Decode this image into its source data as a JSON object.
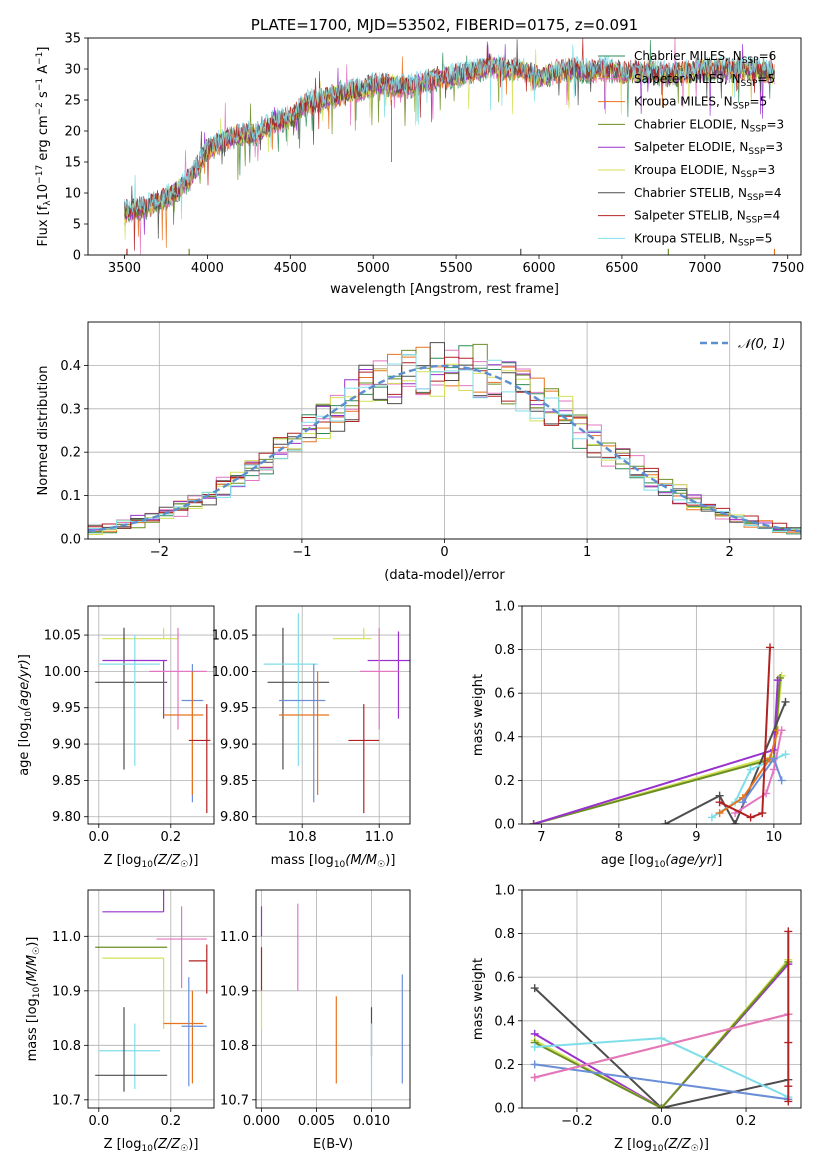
{
  "colors": {
    "chab_miles": "#2e8b57",
    "salp_miles": "#e377c2",
    "krou_miles": "#e8731e",
    "chab_elodie": "#6b8e23",
    "salp_elodie": "#9932cc",
    "krou_elodie": "#d4e157",
    "chab_stelib": "#4d4d4d",
    "salp_stelib": "#b22222",
    "krou_stelib": "#80deea",
    "extra_blue": "#6a8fd8",
    "normal": "#5b8fd0",
    "grid": "#b0b0b0"
  },
  "chart_data": [
    {
      "id": "spectrum",
      "type": "line",
      "title": "PLATE=1700, MJD=53502, FIBERID=0175, z=0.091",
      "xlabel": "wavelength [Angstrom, rest frame]",
      "ylabel": "Flux [f_λ10^-17 erg cm^-2 s^-1 A^-1]",
      "xlim": [
        3280,
        7580
      ],
      "ylim": [
        0,
        35
      ],
      "xticks": [
        3500,
        4000,
        4500,
        5000,
        5500,
        6000,
        6500,
        7000,
        7500
      ],
      "yticks": [
        0,
        5,
        10,
        15,
        20,
        25,
        30,
        35
      ],
      "grid": false,
      "legend_position": "top-right",
      "continuum": {
        "x": [
          3500,
          3600,
          3700,
          3800,
          3900,
          4000,
          4100,
          4200,
          4300,
          4400,
          4500,
          4600,
          4700,
          4800,
          4900,
          5000,
          5100,
          5200,
          5300,
          5400,
          5500,
          5600,
          5700,
          5800,
          5900,
          6000,
          6100,
          6200,
          6300,
          6400,
          6500,
          6600,
          6700,
          6800,
          6900,
          7000,
          7100,
          7200,
          7300,
          7400
        ],
        "y": [
          7,
          7.5,
          8.5,
          10,
          12.5,
          17,
          18.5,
          19.5,
          19.5,
          21.5,
          22,
          24.5,
          25,
          26,
          26.5,
          27.5,
          27.5,
          27,
          28,
          28.5,
          29,
          29.5,
          30.5,
          30,
          30,
          28.5,
          29.5,
          30,
          29.5,
          30,
          29.5,
          29.5,
          29.5,
          29,
          29.5,
          30,
          30,
          30,
          30,
          29.5
        ]
      },
      "series": [
        {
          "name": "Chabrier MILES, N_SSP=6",
          "label_main": "Chabrier MILES, N",
          "label_sub": "SSP",
          "label_tail": "=6",
          "color_key": "chab_miles"
        },
        {
          "name": "Salpeter MILES, N_SSP=5",
          "label_main": "Salpeter MILES, N",
          "label_sub": "SSP",
          "label_tail": "=5",
          "color_key": "salp_miles"
        },
        {
          "name": "Kroupa MILES, N_SSP=5",
          "label_main": "Kroupa MILES, N",
          "label_sub": "SSP",
          "label_tail": "=5",
          "color_key": "krou_miles"
        },
        {
          "name": "Chabrier ELODIE, N_SSP=3",
          "label_main": "Chabrier ELODIE, N",
          "label_sub": "SSP",
          "label_tail": "=3",
          "color_key": "chab_elodie"
        },
        {
          "name": "Salpeter ELODIE, N_SSP=3",
          "label_main": "Salpeter ELODIE, N",
          "label_sub": "SSP",
          "label_tail": "=3",
          "color_key": "salp_elodie"
        },
        {
          "name": "Kroupa ELODIE, N_SSP=3",
          "label_main": "Kroupa ELODIE, N",
          "label_sub": "SSP",
          "label_tail": "=3",
          "color_key": "krou_elodie"
        },
        {
          "name": "Chabrier STELIB, N_SSP=4",
          "label_main": "Chabrier STELIB, N",
          "label_sub": "SSP",
          "label_tail": "=4",
          "color_key": "chab_stelib"
        },
        {
          "name": "Salpeter STELIB, N_SSP=4",
          "label_main": "Salpeter STELIB, N",
          "label_sub": "SSP",
          "label_tail": "=4",
          "color_key": "salp_stelib"
        },
        {
          "name": "Kroupa STELIB, N_SSP=5",
          "label_main": "Kroupa STELIB, N",
          "label_sub": "SSP",
          "label_tail": "=5",
          "color_key": "krou_stelib"
        }
      ]
    },
    {
      "id": "residuals",
      "type": "histogram",
      "xlabel": "(data-model)/error",
      "ylabel": "Normed distribution",
      "xlim": [
        -2.5,
        2.5
      ],
      "ylim": [
        0,
        0.5
      ],
      "xticks": [
        -2,
        -1,
        0,
        1,
        2
      ],
      "yticks": [
        0.0,
        0.1,
        0.2,
        0.3,
        0.4
      ],
      "grid": true,
      "legend": "𝒩(0, 1)",
      "legend_position": "top-right",
      "bin_width": 0.1
    },
    {
      "id": "age_vs_Z",
      "type": "errorbar",
      "xlabel": "Z [log10(Z/Z☉)]",
      "ylabel": "age [log10(age/yr)]",
      "xlim": [
        -0.03,
        0.32
      ],
      "ylim": [
        9.79,
        10.09
      ],
      "xticks": [
        0.0,
        0.2
      ],
      "yticks": [
        9.8,
        9.85,
        9.9,
        9.95,
        10.0,
        10.05
      ],
      "grid": true,
      "points": [
        {
          "color_key": "chab_miles",
          "x": 0.01,
          "xerr": [
            0.0,
            0.0
          ],
          "y": 10.045,
          "yerr": [
            0.0,
            0.0
          ]
        },
        {
          "color_key": "krou_elodie",
          "x": 0.18,
          "xerr": [
            0.17,
            0.04
          ],
          "y": 10.045,
          "yerr": [
            0.0,
            0.015
          ]
        },
        {
          "color_key": "chab_stelib",
          "x": 0.07,
          "xerr": [
            0.08,
            0.12
          ],
          "y": 9.985,
          "yerr": [
            0.12,
            0.075
          ]
        },
        {
          "color_key": "krou_stelib",
          "x": 0.1,
          "xerr": [
            0.1,
            0.07
          ],
          "y": 10.01,
          "yerr": [
            0.14,
            0.04
          ]
        },
        {
          "color_key": "salp_elodie",
          "x": 0.18,
          "xerr": [
            0.17,
            0.01
          ],
          "y": 10.015,
          "yerr": [
            0.08,
            0.0
          ]
        },
        {
          "color_key": "salp_miles",
          "x": 0.22,
          "xerr": [
            0.08,
            0.08
          ],
          "y": 10.0,
          "yerr": [
            0.08,
            0.06
          ]
        },
        {
          "color_key": "extra_blue",
          "x": 0.26,
          "xerr": [
            0.03,
            0.03
          ],
          "y": 9.96,
          "yerr": [
            0.14,
            0.05
          ]
        },
        {
          "color_key": "krou_miles",
          "x": 0.26,
          "xerr": [
            0.08,
            0.03
          ],
          "y": 9.94,
          "yerr": [
            0.11,
            0.06
          ]
        },
        {
          "color_key": "salp_stelib",
          "x": 0.3,
          "xerr": [
            0.05,
            0.01
          ],
          "y": 9.905,
          "yerr": [
            0.1,
            0.05
          ]
        }
      ]
    },
    {
      "id": "age_vs_mass",
      "type": "errorbar",
      "xlabel": "mass [log10(M/M☉)]",
      "ylabel": "",
      "xlim": [
        10.68,
        11.08
      ],
      "ylim": [
        9.79,
        10.09
      ],
      "xticks": [
        10.8,
        11.0
      ],
      "yticks": [
        9.8,
        9.85,
        9.9,
        9.95,
        10.0,
        10.05
      ],
      "grid": true,
      "points": [
        {
          "color_key": "krou_elodie",
          "x": 10.96,
          "xerr": [
            0.08,
            0.02
          ],
          "y": 10.045,
          "yerr": [
            0.0,
            0.015
          ]
        },
        {
          "color_key": "chab_stelib",
          "x": 10.75,
          "xerr": [
            0.04,
            0.12
          ],
          "y": 9.985,
          "yerr": [
            0.12,
            0.075
          ]
        },
        {
          "color_key": "krou_stelib",
          "x": 10.79,
          "xerr": [
            0.09,
            0.05
          ],
          "y": 10.01,
          "yerr": [
            0.14,
            0.07
          ]
        },
        {
          "color_key": "salp_elodie",
          "x": 11.05,
          "xerr": [
            0.08,
            0.03
          ],
          "y": 10.015,
          "yerr": [
            0.08,
            0.04
          ]
        },
        {
          "color_key": "salp_miles",
          "x": 11.0,
          "xerr": [
            0.05,
            0.05
          ],
          "y": 10.0,
          "yerr": [
            0.08,
            0.06
          ]
        },
        {
          "color_key": "extra_blue",
          "x": 10.83,
          "xerr": [
            0.09,
            0.03
          ],
          "y": 9.96,
          "yerr": [
            0.14,
            0.05
          ]
        },
        {
          "color_key": "krou_miles",
          "x": 10.84,
          "xerr": [
            0.1,
            0.03
          ],
          "y": 9.94,
          "yerr": [
            0.11,
            0.06
          ]
        },
        {
          "color_key": "salp_stelib",
          "x": 10.96,
          "xerr": [
            0.04,
            0.04
          ],
          "y": 9.905,
          "yerr": [
            0.1,
            0.05
          ]
        }
      ]
    },
    {
      "id": "weight_vs_age",
      "type": "line",
      "xlabel": "age [log10(age/yr)]",
      "ylabel": "mass weight",
      "xlim": [
        6.75,
        10.35
      ],
      "ylim": [
        0,
        1.0
      ],
      "xticks": [
        7,
        8,
        9,
        10
      ],
      "yticks": [
        0.0,
        0.2,
        0.4,
        0.6,
        0.8,
        1.0
      ],
      "grid": true,
      "series": [
        {
          "color_key": "krou_elodie",
          "x": [
            6.9,
            10.0,
            10.1
          ],
          "y": [
            0.0,
            0.31,
            0.68
          ]
        },
        {
          "color_key": "chab_elodie",
          "x": [
            6.9,
            10.0,
            10.08
          ],
          "y": [
            0.0,
            0.3,
            0.67
          ]
        },
        {
          "color_key": "salp_elodie",
          "x": [
            6.9,
            10.0,
            10.05
          ],
          "y": [
            0.0,
            0.34,
            0.66
          ]
        },
        {
          "color_key": "chab_stelib",
          "x": [
            8.6,
            9.3,
            9.5,
            10.15
          ],
          "y": [
            0.0,
            0.13,
            0.0,
            0.56
          ]
        },
        {
          "color_key": "krou_stelib",
          "x": [
            9.2,
            9.5,
            9.7,
            10.15
          ],
          "y": [
            0.03,
            0.1,
            0.25,
            0.32
          ]
        },
        {
          "color_key": "krou_miles",
          "x": [
            9.3,
            9.6,
            9.95,
            10.05
          ],
          "y": [
            0.05,
            0.12,
            0.3,
            0.43
          ]
        },
        {
          "color_key": "salp_miles",
          "x": [
            9.5,
            9.9,
            10.0,
            10.1
          ],
          "y": [
            0.05,
            0.14,
            0.25,
            0.43
          ]
        },
        {
          "color_key": "extra_blue",
          "x": [
            9.6,
            10.0,
            10.1
          ],
          "y": [
            0.1,
            0.3,
            0.2
          ]
        },
        {
          "color_key": "salp_stelib",
          "x": [
            9.3,
            9.7,
            9.85,
            9.95
          ],
          "y": [
            0.1,
            0.03,
            0.05,
            0.81
          ]
        }
      ]
    },
    {
      "id": "mass_vs_Z",
      "type": "errorbar",
      "xlabel": "Z [log10(Z/Z☉)]",
      "ylabel": "mass [log10(M/M☉)]",
      "xlim": [
        -0.03,
        0.32
      ],
      "ylim": [
        10.685,
        11.085
      ],
      "xticks": [
        0.0,
        0.2
      ],
      "yticks": [
        10.7,
        10.8,
        10.9,
        11.0
      ],
      "grid": true,
      "points": [
        {
          "color_key": "salp_elodie",
          "x": 0.18,
          "xerr": [
            0.17,
            0.0
          ],
          "y": 11.045,
          "yerr": [
            0.0,
            0.11
          ]
        },
        {
          "color_key": "salp_miles",
          "x": 0.23,
          "xerr": [
            0.07,
            0.07
          ],
          "y": 10.995,
          "yerr": [
            0.09,
            0.06
          ]
        },
        {
          "color_key": "chab_elodie",
          "x": 0.19,
          "xerr": [
            0.2,
            0.0
          ],
          "y": 10.98,
          "yerr": [
            0.0,
            0.0
          ]
        },
        {
          "color_key": "krou_elodie",
          "x": 0.18,
          "xerr": [
            0.17,
            0.0
          ],
          "y": 10.96,
          "yerr": [
            0.13,
            0.0
          ]
        },
        {
          "color_key": "salp_stelib",
          "x": 0.3,
          "xerr": [
            0.05,
            0.0
          ],
          "y": 10.955,
          "yerr": [
            0.06,
            0.03
          ]
        },
        {
          "color_key": "krou_miles",
          "x": 0.26,
          "xerr": [
            0.08,
            0.03
          ],
          "y": 10.84,
          "yerr": [
            0.11,
            0.06
          ]
        },
        {
          "color_key": "extra_blue",
          "x": 0.25,
          "xerr": [
            0.02,
            0.05
          ],
          "y": 10.835,
          "yerr": [
            0.11,
            0.09
          ]
        },
        {
          "color_key": "krou_stelib",
          "x": 0.1,
          "xerr": [
            0.1,
            0.07
          ],
          "y": 10.79,
          "yerr": [
            0.07,
            0.05
          ]
        },
        {
          "color_key": "chab_stelib",
          "x": 0.07,
          "xerr": [
            0.08,
            0.12
          ],
          "y": 10.745,
          "yerr": [
            0.03,
            0.125
          ]
        }
      ]
    },
    {
      "id": "mass_vs_ebv",
      "type": "errorbar",
      "xlabel": "E(B-V)",
      "ylabel": "",
      "xlim": [
        -0.0005,
        0.0135
      ],
      "ylim": [
        10.685,
        11.085
      ],
      "xticks": [
        0.0,
        0.005,
        0.01
      ],
      "yticks": [
        10.7,
        10.8,
        10.9,
        11.0
      ],
      "grid": true,
      "points": [
        {
          "color_key": "salp_elodie",
          "x": 0.0,
          "y": 11.0,
          "yerr": [
            0.0,
            0.055
          ]
        },
        {
          "color_key": "salp_stelib",
          "x": 0.0,
          "y": 10.95,
          "yerr": [
            0.05,
            0.03
          ]
        },
        {
          "color_key": "krou_elodie",
          "x": 0.0,
          "y": 10.86,
          "yerr": [
            0.03,
            0.04
          ]
        },
        {
          "color_key": "salp_miles",
          "x": 0.0033,
          "y": 10.99,
          "yerr": [
            0.09,
            0.07
          ]
        },
        {
          "color_key": "krou_miles",
          "x": 0.0068,
          "y": 10.81,
          "yerr": [
            0.08,
            0.08
          ]
        },
        {
          "color_key": "chab_stelib",
          "x": 0.01,
          "y": 10.83,
          "yerr": [
            0.05,
            0.04
          ]
        },
        {
          "color_key": "krou_stelib",
          "x": 0.01,
          "y": 10.77,
          "yerr": [
            0.06,
            0.07
          ]
        },
        {
          "color_key": "extra_blue",
          "x": 0.0128,
          "y": 10.83,
          "yerr": [
            0.1,
            0.1
          ]
        }
      ]
    },
    {
      "id": "weight_vs_Z",
      "type": "line",
      "xlabel": "Z [log10(Z/Z☉)]",
      "ylabel": "mass weight",
      "xlim": [
        -0.33,
        0.33
      ],
      "ylim": [
        0,
        1.0
      ],
      "xticks": [
        -0.2,
        0.0,
        0.2
      ],
      "yticks": [
        0.0,
        0.2,
        0.4,
        0.6,
        0.8,
        1.0
      ],
      "grid": true,
      "series": [
        {
          "color_key": "chab_stelib",
          "x": [
            -0.3,
            0.0,
            0.3
          ],
          "y": [
            0.55,
            0.0,
            0.13
          ]
        },
        {
          "color_key": "salp_elodie",
          "x": [
            -0.3,
            0.0,
            0.3
          ],
          "y": [
            0.34,
            0.0,
            0.66
          ]
        },
        {
          "color_key": "krou_elodie",
          "x": [
            -0.3,
            0.0,
            0.3
          ],
          "y": [
            0.31,
            0.0,
            0.68
          ]
        },
        {
          "color_key": "chab_elodie",
          "x": [
            -0.3,
            0.0,
            0.3
          ],
          "y": [
            0.3,
            0.0,
            0.67
          ]
        },
        {
          "color_key": "krou_stelib",
          "x": [
            -0.3,
            0.0,
            0.3
          ],
          "y": [
            0.28,
            0.32,
            0.05
          ]
        },
        {
          "color_key": "extra_blue",
          "x": [
            -0.3,
            0.3
          ],
          "y": [
            0.2,
            0.04
          ]
        },
        {
          "color_key": "krou_miles",
          "x": [
            -0.3,
            0.3
          ],
          "y": [
            0.14,
            0.43
          ]
        },
        {
          "color_key": "salp_miles",
          "x": [
            -0.3,
            0.3
          ],
          "y": [
            0.14,
            0.43
          ]
        },
        {
          "color_key": "salp_stelib",
          "x": [
            0.3,
            0.3,
            0.3,
            0.3
          ],
          "y": [
            0.03,
            0.1,
            0.3,
            0.81
          ]
        }
      ]
    }
  ]
}
